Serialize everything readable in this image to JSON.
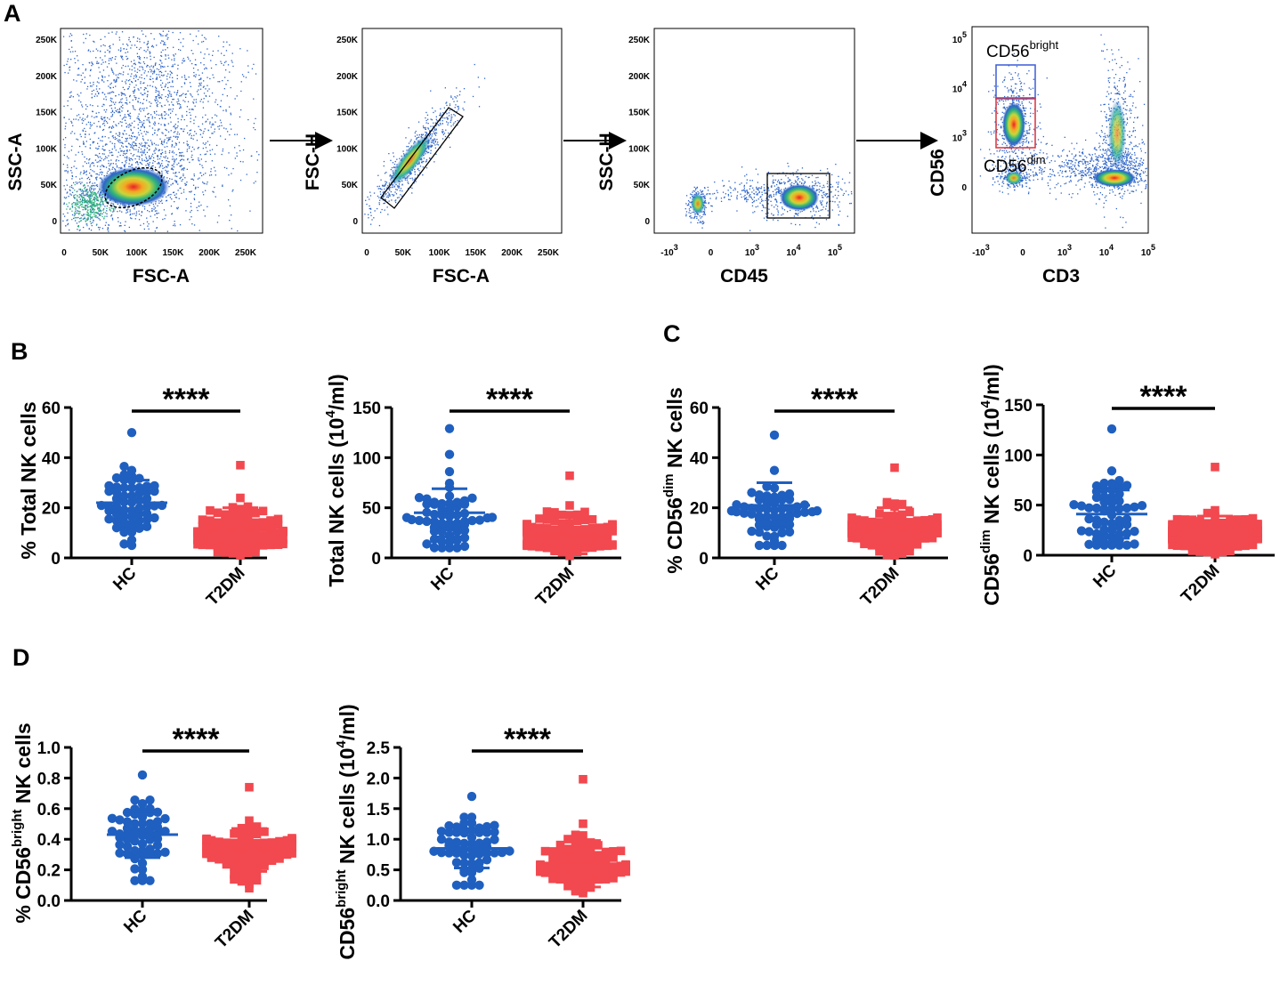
{
  "panel_labels": {
    "A": "A",
    "B": "B",
    "C": "C",
    "D": "D"
  },
  "colors": {
    "hc": "#1f5fbf",
    "t2dm": "#f2484f",
    "axis": "#000000",
    "gate_blue": "#3b5cd9",
    "gate_red": "#d9303a"
  },
  "flow_plots": [
    {
      "id": "fsc-ssc",
      "xlabel": "FSC-A",
      "ylabel": "SSC-A",
      "xticks": [
        "0",
        "50K",
        "100K",
        "150K",
        "200K",
        "250K"
      ],
      "yticks": [
        "250K",
        "200K",
        "150K",
        "100K",
        "50K",
        "0"
      ]
    },
    {
      "id": "singlets",
      "xlabel": "FSC-A",
      "ylabel": "FSC-H",
      "xticks": [
        "0",
        "50K",
        "100K",
        "150K",
        "200K",
        "250K"
      ],
      "yticks": [
        "250K",
        "200K",
        "150K",
        "100K",
        "50K",
        "0"
      ]
    },
    {
      "id": "cd45",
      "xlabel": "CD45",
      "ylabel": "SSC-H",
      "xticks": [
        "-10",
        "0",
        "10",
        "10",
        "10"
      ],
      "xtick_exponents": [
        "3",
        "",
        "3",
        "4",
        "5"
      ],
      "yticks": [
        "250K",
        "200K",
        "150K",
        "100K",
        "50K",
        "0"
      ]
    },
    {
      "id": "cd3-cd56",
      "xlabel": "CD3",
      "ylabel": "CD56",
      "xticks": [
        "-10",
        "0",
        "10",
        "10",
        "10"
      ],
      "xtick_exponents": [
        "3",
        "",
        "3",
        "4",
        "5"
      ],
      "yticks": [
        "10",
        "10",
        "10",
        "0"
      ],
      "ytick_exponents": [
        "5",
        "4",
        "3",
        ""
      ],
      "gate_bright_base": "CD56",
      "gate_bright_sup": "bright",
      "gate_dim_base": "CD56",
      "gate_dim_sup": "dim"
    }
  ],
  "chart_data": [
    {
      "id": "B1",
      "type": "scatter-dot",
      "ylabel_main": "% Total NK cells",
      "categories": [
        "HC",
        "T2DM"
      ],
      "ylim": [
        0,
        60
      ],
      "yticks": [
        "0",
        "20",
        "40",
        "60"
      ],
      "significance": "****",
      "series": [
        {
          "name": "HC",
          "mean": 22,
          "sd": 9,
          "min": 5,
          "max": 50,
          "n": 60
        },
        {
          "name": "T2DM",
          "mean": 12,
          "sd": 8,
          "min": 1,
          "max": 37,
          "n": 85
        }
      ]
    },
    {
      "id": "B2",
      "type": "scatter-dot",
      "ylabel_main": "Total NK cells (10",
      "ylabel_sup": "4",
      "ylabel_end": "/ml)",
      "categories": [
        "HC",
        "T2DM"
      ],
      "ylim": [
        0,
        150
      ],
      "yticks": [
        "0",
        "50",
        "100",
        "150"
      ],
      "significance": "****",
      "series": [
        {
          "name": "HC",
          "mean": 45,
          "sd": 24,
          "min": 10,
          "max": 129,
          "n": 60
        },
        {
          "name": "T2DM",
          "mean": 22,
          "sd": 18,
          "min": 2,
          "max": 82,
          "n": 85
        }
      ]
    },
    {
      "id": "C1",
      "type": "scatter-dot",
      "ylabel_main": "% CD56",
      "ylabel_sup": "dim",
      "ylabel_end": " NK cells",
      "categories": [
        "HC",
        "T2DM"
      ],
      "ylim": [
        0,
        60
      ],
      "yticks": [
        "0",
        "20",
        "40",
        "60"
      ],
      "significance": "****",
      "series": [
        {
          "name": "HC",
          "mean": 21,
          "sd": 9,
          "min": 5,
          "max": 49,
          "n": 60
        },
        {
          "name": "T2DM",
          "mean": 12,
          "sd": 8,
          "min": 1,
          "max": 36,
          "n": 85
        }
      ]
    },
    {
      "id": "C2",
      "type": "scatter-dot",
      "ylabel_main": "CD56",
      "ylabel_sup": "dim",
      "ylabel_end": " NK cells (10",
      "ylabel_sup2": "4",
      "ylabel_end2": "/ml)",
      "categories": [
        "HC",
        "T2DM"
      ],
      "ylim": [
        0,
        150
      ],
      "yticks": [
        "0",
        "50",
        "100",
        "150"
      ],
      "significance": "****",
      "series": [
        {
          "name": "HC",
          "mean": 41,
          "sd": 24,
          "min": 10,
          "max": 126,
          "n": 60
        },
        {
          "name": "T2DM",
          "mean": 21,
          "sd": 18,
          "min": 1,
          "max": 88,
          "n": 85
        }
      ]
    },
    {
      "id": "D1",
      "type": "scatter-dot",
      "ylabel_main": "% CD56",
      "ylabel_sup": "bright",
      "ylabel_end": " NK cells",
      "categories": [
        "HC",
        "T2DM"
      ],
      "ylim": [
        0,
        1.0
      ],
      "yticks": [
        "0.0",
        "0.2",
        "0.4",
        "0.6",
        "0.8",
        "1.0"
      ],
      "significance": "****",
      "series": [
        {
          "name": "HC",
          "mean": 0.43,
          "sd": 0.15,
          "min": 0.13,
          "max": 0.82,
          "n": 60
        },
        {
          "name": "T2DM",
          "mean": 0.33,
          "sd": 0.14,
          "min": 0.08,
          "max": 0.74,
          "n": 85
        }
      ]
    },
    {
      "id": "D2",
      "type": "scatter-dot",
      "ylabel_main": "CD56",
      "ylabel_sup": "bright",
      "ylabel_end": " NK cells (10",
      "ylabel_sup2": "4",
      "ylabel_end2": "/ml)",
      "categories": [
        "HC",
        "T2DM"
      ],
      "ylim": [
        0,
        2.5
      ],
      "yticks": [
        "0.0",
        "0.5",
        "1.0",
        "1.5",
        "2.0",
        "2.5"
      ],
      "significance": "****",
      "series": [
        {
          "name": "HC",
          "mean": 0.85,
          "sd": 0.32,
          "min": 0.25,
          "max": 1.7,
          "n": 60
        },
        {
          "name": "T2DM",
          "mean": 0.6,
          "sd": 0.38,
          "min": 0.12,
          "max": 1.98,
          "n": 85
        }
      ]
    }
  ]
}
